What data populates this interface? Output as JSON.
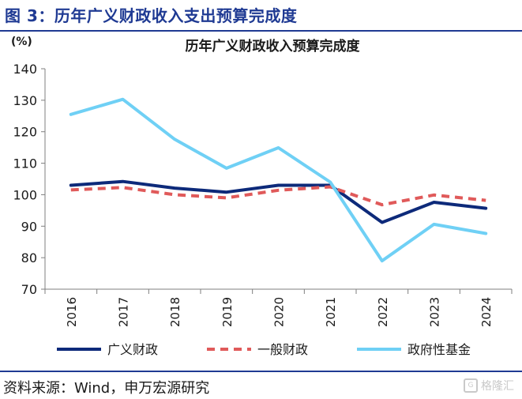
{
  "figure_title": "图 3：历年广义财政收入支出预算完成度",
  "source": "资料来源：Wind，申万宏源研究",
  "watermark": "格隆汇",
  "watermark_icon": "G",
  "chart_data": {
    "type": "line",
    "title": "历年广义财政收入预算完成度",
    "ylabel": "(%)",
    "xlabel": "",
    "ylim": [
      70,
      140
    ],
    "yticks": [
      70,
      80,
      90,
      100,
      110,
      120,
      130,
      140
    ],
    "categories": [
      "2016",
      "2017",
      "2018",
      "2019",
      "2020",
      "2021",
      "2022",
      "2023",
      "2024"
    ],
    "legend_position": "bottom",
    "grid": false,
    "series": [
      {
        "name": "广义财政",
        "color": "#0d2a7a",
        "style": "solid",
        "values": [
          103.0,
          104.2,
          102.1,
          100.8,
          103.0,
          103.0,
          91.2,
          97.6,
          95.7
        ]
      },
      {
        "name": "一般财政",
        "color": "#e05a5a",
        "style": "dashed",
        "values": [
          101.5,
          102.3,
          100.0,
          99.0,
          101.4,
          102.5,
          96.8,
          99.9,
          98.2
        ]
      },
      {
        "name": "政府性基金",
        "color": "#6fd0f5",
        "style": "solid",
        "values": [
          125.5,
          130.3,
          117.6,
          108.4,
          114.9,
          104.0,
          79.0,
          90.6,
          87.7
        ]
      }
    ]
  }
}
